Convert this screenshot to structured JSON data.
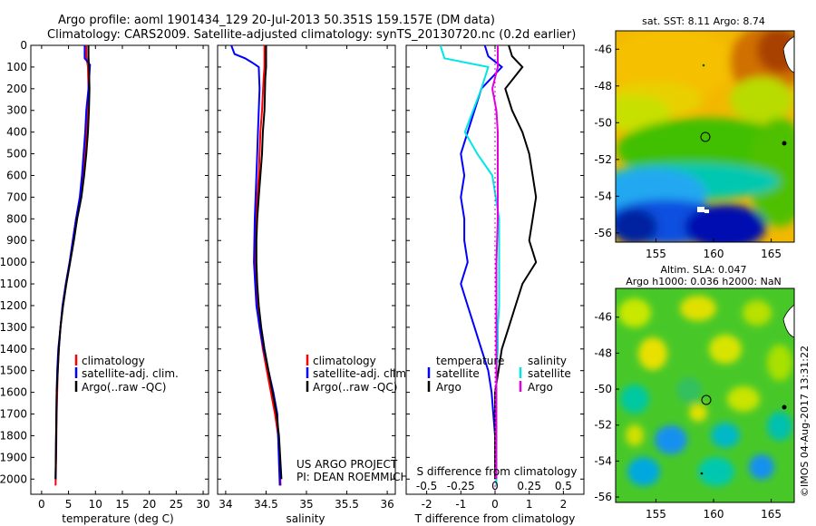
{
  "header": {
    "line1": "Argo profile: aoml 1901434_129 20-Jul-2013 50.351S 159.157E (DM data)",
    "line2": "Climatology: CARS2009. Satellite-adjusted climatology: synTS_20130720.nc (0.2d earlier)"
  },
  "side_label": "©IMOS 04-Aug-2017 13:31:22",
  "map_sst_title": "sat. SST: 8.11  Argo: 8.74",
  "map_sla_title1": "Altim. SLA: 0.047",
  "map_sla_title2": "Argo h1000: 0.036  h2000: NaN",
  "credit": [
    "US ARGO PROJECT",
    "PI: DEAN ROEMMICH"
  ],
  "colors": {
    "climatology": "#ff0000",
    "satellite": "#0000ff",
    "argo": "#000000",
    "sal_satellite": "#00e5e5",
    "sal_argo": "#e000e0"
  },
  "chart_data": [
    {
      "type": "line",
      "xlabel": "temperature (deg C)",
      "ylabel": "",
      "xlim": [
        -2,
        31
      ],
      "ylim": [
        2070,
        0
      ],
      "xticks": [
        0,
        5,
        10,
        15,
        20,
        25,
        30
      ],
      "yticks": [
        0,
        100,
        200,
        300,
        400,
        500,
        600,
        700,
        800,
        900,
        1000,
        1100,
        1200,
        1300,
        1400,
        1500,
        1600,
        1700,
        1800,
        1900,
        2000
      ],
      "legend": [
        "climatology",
        "satellite-adj. clim.",
        "Argo(..raw -QC)"
      ],
      "legend_position": "lower-left",
      "series": [
        {
          "name": "climatology",
          "color": "#ff0000",
          "x": [
            8.3,
            8.3,
            8.6,
            8.7,
            8.6,
            8.4,
            8.1,
            7.7,
            7.2,
            6.4,
            5.8,
            5.2,
            4.5,
            3.9,
            3.5,
            3.2,
            3.0,
            2.9,
            2.8,
            2.7,
            2.6
          ],
          "y": [
            0,
            50,
            100,
            200,
            300,
            400,
            500,
            600,
            700,
            800,
            900,
            1000,
            1100,
            1200,
            1300,
            1400,
            1500,
            1600,
            1700,
            1900,
            2030
          ]
        },
        {
          "name": "satellite-adj. clim.",
          "color": "#0000ff",
          "x": [
            8.0,
            8.0,
            9.0,
            8.7,
            8.3,
            8.1,
            7.8,
            7.5,
            7.1,
            6.4,
            5.8,
            5.2,
            4.5,
            3.9,
            3.5,
            3.1,
            2.9,
            2.8,
            2.7,
            2.6
          ],
          "y": [
            0,
            60,
            90,
            200,
            300,
            400,
            500,
            600,
            700,
            800,
            900,
            1000,
            1100,
            1200,
            1300,
            1400,
            1500,
            1600,
            1800,
            2000
          ]
        },
        {
          "name": "Argo(..raw -QC)",
          "color": "#000000",
          "x": [
            8.7,
            8.7,
            8.8,
            8.9,
            8.8,
            8.6,
            8.3,
            7.9,
            7.4,
            6.6,
            6.0,
            5.3,
            4.6,
            4.0,
            3.5,
            3.2,
            3.0,
            2.8,
            2.7,
            2.6
          ],
          "y": [
            0,
            50,
            100,
            200,
            300,
            400,
            500,
            600,
            700,
            800,
            900,
            1000,
            1100,
            1200,
            1300,
            1400,
            1500,
            1600,
            1800,
            2000
          ]
        }
      ]
    },
    {
      "type": "line",
      "xlabel": "salinity",
      "ylabel": "",
      "xlim": [
        33.9,
        36.1
      ],
      "ylim": [
        2070,
        0
      ],
      "xticks": [
        34,
        34.5,
        35,
        35.5,
        36
      ],
      "legend": [
        "climatology",
        "satellite-adj. clim.",
        "Argo(..raw -QC)"
      ],
      "legend_position": "lower-left",
      "series": [
        {
          "name": "climatology",
          "color": "#ff0000",
          "x": [
            34.48,
            34.48,
            34.47,
            34.45,
            34.43,
            34.42,
            34.41,
            34.39,
            34.37,
            34.36,
            34.36,
            34.37,
            34.39,
            34.42,
            34.46,
            34.51,
            34.56,
            34.61,
            34.65,
            34.68
          ],
          "y": [
            0,
            100,
            150,
            300,
            400,
            500,
            600,
            700,
            800,
            900,
            1000,
            1100,
            1200,
            1300,
            1400,
            1500,
            1600,
            1700,
            1800,
            2030
          ]
        },
        {
          "name": "satellite-adj. clim.",
          "color": "#0000ff",
          "x": [
            34.07,
            34.11,
            34.24,
            34.33,
            34.41,
            34.42,
            34.41,
            34.4,
            34.39,
            34.38,
            34.37,
            34.36,
            34.35,
            34.38,
            34.42,
            34.47,
            34.53,
            34.59,
            34.64,
            34.67
          ],
          "y": [
            0,
            40,
            60,
            80,
            100,
            200,
            300,
            400,
            500,
            600,
            700,
            800,
            1000,
            1200,
            1300,
            1400,
            1500,
            1600,
            1700,
            2030
          ]
        },
        {
          "name": "Argo(..raw -QC)",
          "color": "#000000",
          "x": [
            34.5,
            34.5,
            34.49,
            34.48,
            34.46,
            34.45,
            34.43,
            34.41,
            34.39,
            34.38,
            34.38,
            34.39,
            34.41,
            34.44,
            34.48,
            34.53,
            34.58,
            34.63,
            34.66,
            34.69
          ],
          "y": [
            0,
            100,
            150,
            300,
            400,
            500,
            600,
            700,
            800,
            900,
            1000,
            1100,
            1200,
            1300,
            1400,
            1500,
            1600,
            1700,
            1800,
            2000
          ]
        }
      ]
    },
    {
      "type": "line",
      "xlabel": "T difference from climatology",
      "xlabel2": "S difference from climatology",
      "ylabel": "",
      "xlim": [
        -2.6,
        2.6
      ],
      "ylim": [
        2070,
        0
      ],
      "xticks": [
        -2,
        -1,
        0,
        1,
        2
      ],
      "xticks2": [
        "-0.5",
        "-0.25",
        "0",
        "0.25",
        "0.5"
      ],
      "legend_headers": [
        "temperature",
        "salinity"
      ],
      "legend": [
        "satellite",
        "Argo",
        "satellite",
        "Argo"
      ],
      "legend_position": "lower-center",
      "series": [
        {
          "name": "satellite",
          "group": "temperature",
          "color": "#0000ff",
          "x": [
            -0.3,
            -0.2,
            0.2,
            -0.4,
            -0.6,
            -0.8,
            -1.0,
            -0.9,
            -1.0,
            -0.9,
            -0.9,
            -0.8,
            -1.0,
            -0.8,
            -0.6,
            -0.4,
            -0.2,
            -0.1,
            0,
            0
          ],
          "y": [
            0,
            50,
            100,
            200,
            300,
            400,
            500,
            600,
            700,
            800,
            900,
            1000,
            1100,
            1200,
            1300,
            1400,
            1500,
            1600,
            1800,
            2000
          ]
        },
        {
          "name": "Argo",
          "group": "temperature",
          "color": "#000000",
          "x": [
            0.4,
            0.5,
            0.8,
            0.3,
            0.5,
            0.8,
            1.0,
            1.1,
            1.2,
            1.1,
            1.0,
            1.2,
            0.8,
            0.6,
            0.4,
            0.2,
            0.1,
            0,
            0,
            0
          ],
          "y": [
            0,
            50,
            100,
            200,
            300,
            400,
            500,
            600,
            700,
            800,
            900,
            1000,
            1100,
            1200,
            1300,
            1400,
            1500,
            1600,
            1800,
            2000
          ]
        },
        {
          "name": "satellite",
          "group": "salinity",
          "color": "#00e5e5",
          "x": [
            -0.4,
            -0.37,
            -0.05,
            -0.1,
            -0.22,
            -0.13,
            -0.02,
            0.03,
            0.03,
            0.03,
            0.03,
            0.03,
            0.02,
            0.02,
            0.01,
            0.01,
            0.01,
            0.01,
            0.01
          ],
          "y": [
            0,
            60,
            100,
            200,
            400,
            500,
            600,
            800,
            900,
            1000,
            1100,
            1200,
            1300,
            1400,
            1500,
            1600,
            1700,
            1800,
            2030
          ]
        },
        {
          "name": "Argo",
          "group": "salinity",
          "color": "#e000e0",
          "x": [
            0.02,
            0.02,
            -0.02,
            0.01,
            0.02,
            0.02,
            0.02,
            0.02,
            0.01,
            0.01,
            0.01,
            0.01,
            0.01,
            0.01,
            0.01
          ],
          "y": [
            0,
            100,
            200,
            300,
            400,
            500,
            600,
            800,
            1000,
            1200,
            1400,
            1600,
            1800,
            1900,
            2000
          ]
        }
      ]
    },
    {
      "type": "heatmap",
      "title": "sat. SST: 8.11  Argo: 8.74",
      "xlim": [
        151.5,
        167
      ],
      "ylim": [
        -56.5,
        -45
      ],
      "xticks": [
        155,
        160,
        165
      ],
      "yticks": [
        -46,
        -48,
        -50,
        -52,
        -54,
        -56
      ],
      "marker": {
        "lon": 159.157,
        "lat": -50.351
      }
    },
    {
      "type": "heatmap",
      "title": "Altim. SLA: 0.047",
      "subtitle": "Argo h1000: 0.036  h2000: NaN",
      "xlim": [
        151.5,
        167
      ],
      "ylim": [
        -56.3,
        -44.4
      ],
      "xticks": [
        155,
        160,
        165
      ],
      "yticks": [
        -46,
        -48,
        -50,
        -52,
        -54,
        -56
      ],
      "marker": {
        "lon": 159.157,
        "lat": -50.351
      }
    }
  ]
}
